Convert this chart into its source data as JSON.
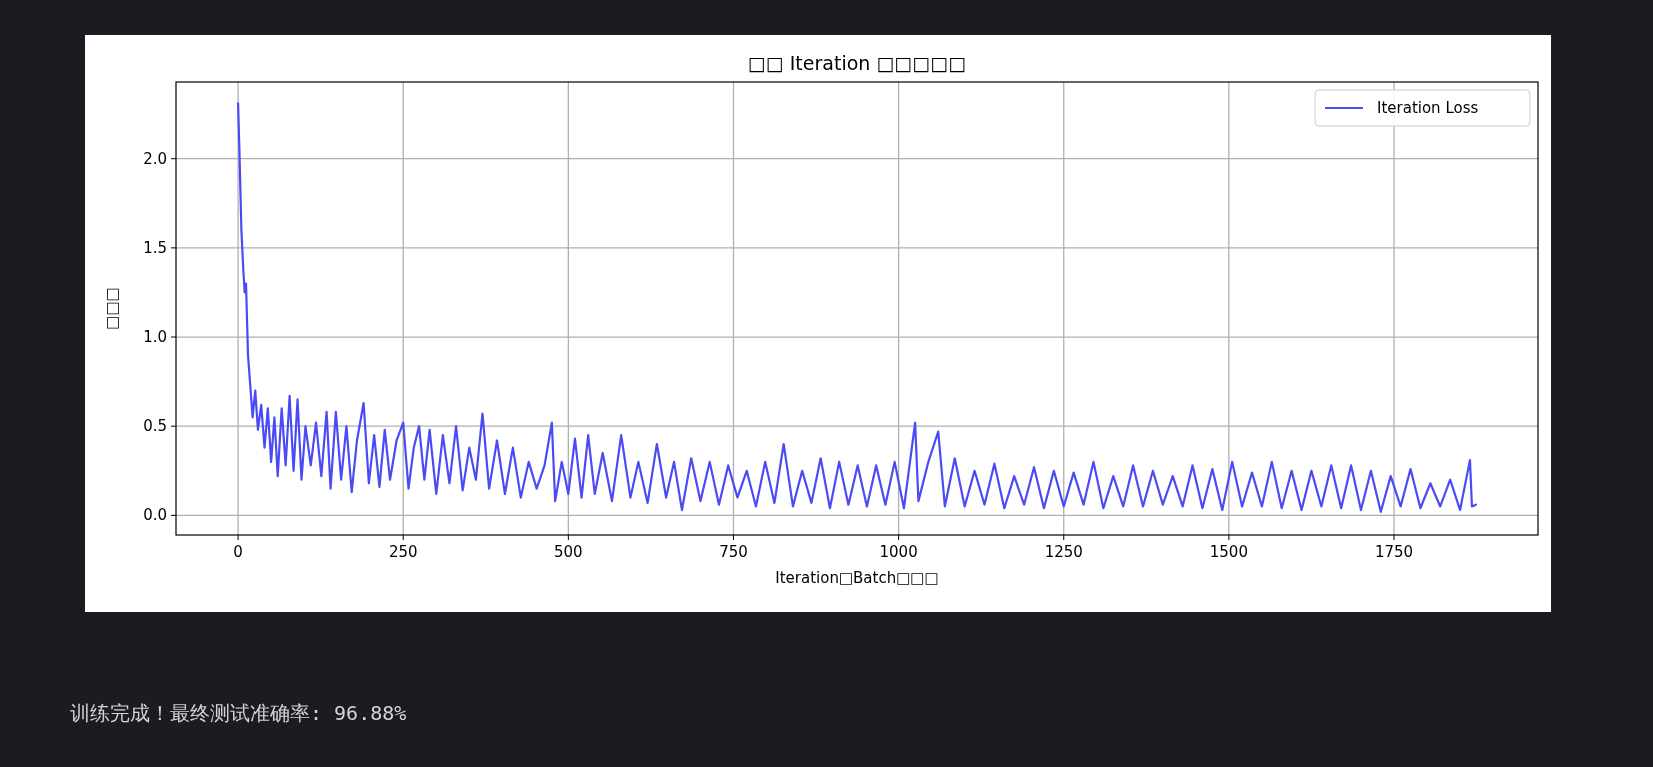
{
  "chart_data": {
    "type": "line",
    "title": "□□ Iteration □□□□□",
    "xlabel": "Iteration□Batch□□□",
    "ylabel": "□□□",
    "xlim": [
      -94,
      1968
    ],
    "ylim": [
      -0.11,
      2.43
    ],
    "xticks": [
      0,
      250,
      500,
      750,
      1000,
      1250,
      1500,
      1750
    ],
    "yticks": [
      {
        "value": 0,
        "label": "0.0"
      },
      {
        "value": 0.5,
        "label": "0.5"
      },
      {
        "value": 1,
        "label": "1.0"
      },
      {
        "value": 1.5,
        "label": "1.5"
      },
      {
        "value": 2,
        "label": "2.0"
      }
    ],
    "grid": true,
    "legend": "top right",
    "marker": "none",
    "line_style": "solid",
    "annotations": [
      "训练完成！最终测试准确率: 96.88%"
    ],
    "series": [
      {
        "name": "Iteration Loss",
        "color": "#4b4bf5",
        "x": [
          0,
          2,
          5,
          8,
          10,
          12,
          15,
          18,
          22,
          26,
          30,
          35,
          40,
          45,
          50,
          55,
          60,
          66,
          72,
          78,
          84,
          90,
          96,
          102,
          110,
          118,
          126,
          134,
          140,
          148,
          156,
          164,
          172,
          180,
          190,
          198,
          206,
          214,
          222,
          230,
          240,
          250,
          258,
          266,
          274,
          282,
          290,
          300,
          310,
          320,
          330,
          340,
          350,
          360,
          370,
          380,
          392,
          404,
          416,
          428,
          440,
          452,
          464,
          475,
          480,
          490,
          500,
          510,
          520,
          530,
          540,
          552,
          566,
          580,
          594,
          606,
          620,
          634,
          648,
          660,
          672,
          686,
          700,
          714,
          728,
          742,
          756,
          770,
          784,
          798,
          812,
          826,
          840,
          854,
          868,
          882,
          896,
          910,
          924,
          938,
          952,
          966,
          980,
          994,
          1008,
          1025,
          1030,
          1045,
          1060,
          1070,
          1085,
          1100,
          1115,
          1130,
          1145,
          1160,
          1175,
          1190,
          1205,
          1220,
          1235,
          1250,
          1265,
          1280,
          1295,
          1310,
          1325,
          1340,
          1355,
          1370,
          1385,
          1400,
          1415,
          1430,
          1445,
          1460,
          1475,
          1490,
          1505,
          1520,
          1535,
          1550,
          1565,
          1580,
          1595,
          1610,
          1625,
          1640,
          1655,
          1670,
          1685,
          1700,
          1715,
          1730,
          1745,
          1760,
          1775,
          1790,
          1805,
          1820,
          1835,
          1850,
          1865,
          1868,
          1874
        ],
        "values": [
          2.31,
          2.05,
          1.6,
          1.37,
          1.25,
          1.3,
          0.9,
          0.75,
          0.55,
          0.7,
          0.48,
          0.62,
          0.38,
          0.6,
          0.3,
          0.55,
          0.22,
          0.6,
          0.28,
          0.67,
          0.25,
          0.65,
          0.2,
          0.5,
          0.28,
          0.52,
          0.22,
          0.58,
          0.15,
          0.58,
          0.2,
          0.5,
          0.13,
          0.42,
          0.63,
          0.18,
          0.45,
          0.16,
          0.48,
          0.2,
          0.42,
          0.52,
          0.15,
          0.38,
          0.5,
          0.2,
          0.48,
          0.12,
          0.45,
          0.18,
          0.5,
          0.14,
          0.38,
          0.2,
          0.57,
          0.15,
          0.42,
          0.12,
          0.38,
          0.1,
          0.3,
          0.15,
          0.28,
          0.52,
          0.08,
          0.3,
          0.12,
          0.43,
          0.1,
          0.45,
          0.12,
          0.35,
          0.08,
          0.45,
          0.1,
          0.3,
          0.07,
          0.4,
          0.1,
          0.3,
          0.03,
          0.32,
          0.08,
          0.3,
          0.06,
          0.28,
          0.1,
          0.25,
          0.05,
          0.3,
          0.07,
          0.4,
          0.05,
          0.25,
          0.07,
          0.32,
          0.04,
          0.3,
          0.06,
          0.28,
          0.05,
          0.28,
          0.06,
          0.3,
          0.04,
          0.52,
          0.08,
          0.3,
          0.47,
          0.05,
          0.32,
          0.05,
          0.25,
          0.06,
          0.29,
          0.04,
          0.22,
          0.06,
          0.27,
          0.04,
          0.25,
          0.05,
          0.24,
          0.06,
          0.3,
          0.04,
          0.22,
          0.05,
          0.28,
          0.05,
          0.25,
          0.06,
          0.22,
          0.05,
          0.28,
          0.04,
          0.26,
          0.03,
          0.3,
          0.05,
          0.24,
          0.05,
          0.3,
          0.04,
          0.25,
          0.03,
          0.25,
          0.05,
          0.28,
          0.04,
          0.28,
          0.03,
          0.25,
          0.02,
          0.22,
          0.05,
          0.26,
          0.04,
          0.18,
          0.05,
          0.2,
          0.03,
          0.31,
          0.05,
          0.06
        ]
      }
    ]
  }
}
